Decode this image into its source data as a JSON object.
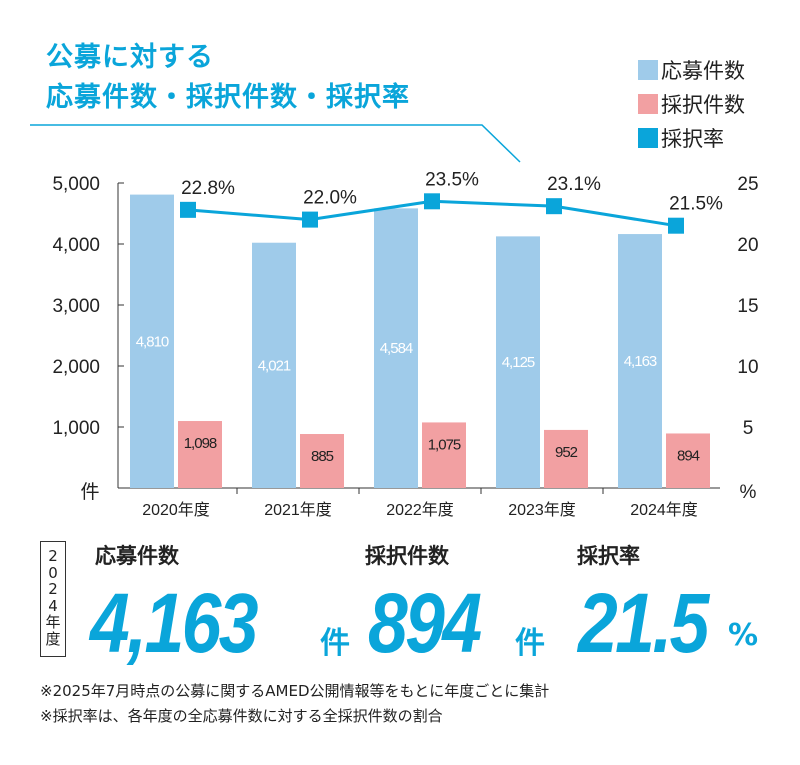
{
  "chart_data": {
    "type": "bar+line",
    "title": [
      "公募に対する",
      "応募件数・採択件数・採択率"
    ],
    "categories": [
      "2020年度",
      "2021年度",
      "2022年度",
      "2023年度",
      "2024年度"
    ],
    "series": [
      {
        "name": "応募件数",
        "type": "bar",
        "axis": "left",
        "color": "#9fcbea",
        "values": [
          4810,
          4021,
          4584,
          4125,
          4163
        ],
        "labels": [
          "4,810",
          "4,021",
          "4,584",
          "4,125",
          "4,163"
        ]
      },
      {
        "name": "採択件数",
        "type": "bar",
        "axis": "left",
        "color": "#f2a0a2",
        "values": [
          1098,
          885,
          1075,
          952,
          894
        ],
        "labels": [
          "1,098",
          "885",
          "1,075",
          "952",
          "894"
        ]
      },
      {
        "name": "採択率",
        "type": "line",
        "axis": "right",
        "color": "#0aa5da",
        "values": [
          22.8,
          22.0,
          23.5,
          23.1,
          21.5
        ],
        "labels": [
          "22.8%",
          "22.0%",
          "23.5%",
          "23.1%",
          "21.5%"
        ]
      }
    ],
    "left_axis": {
      "unit": "件",
      "range": [
        0,
        5000
      ],
      "ticks": [
        "1,000",
        "2,000",
        "3,000",
        "4,000",
        "5,000"
      ]
    },
    "right_axis": {
      "unit": "%",
      "range": [
        0,
        25
      ],
      "ticks": [
        "5",
        "10",
        "15",
        "20",
        "25"
      ]
    },
    "legend_position": "top-right"
  },
  "summary": {
    "year_label": [
      "2",
      "0",
      "2",
      "4",
      "年",
      "度"
    ],
    "items": [
      {
        "label": "応募件数",
        "value": "4,163",
        "unit": "件"
      },
      {
        "label": "採択件数",
        "value": "894",
        "unit": "件"
      },
      {
        "label": "採択率",
        "value": "21.5",
        "unit": "%"
      }
    ]
  },
  "notes": [
    "※2025年7月時点の公募に関するAMED公開情報等をもとに年度ごとに集計",
    "※採択率は、各年度の全応募件数に対する全採択件数の割合"
  ]
}
